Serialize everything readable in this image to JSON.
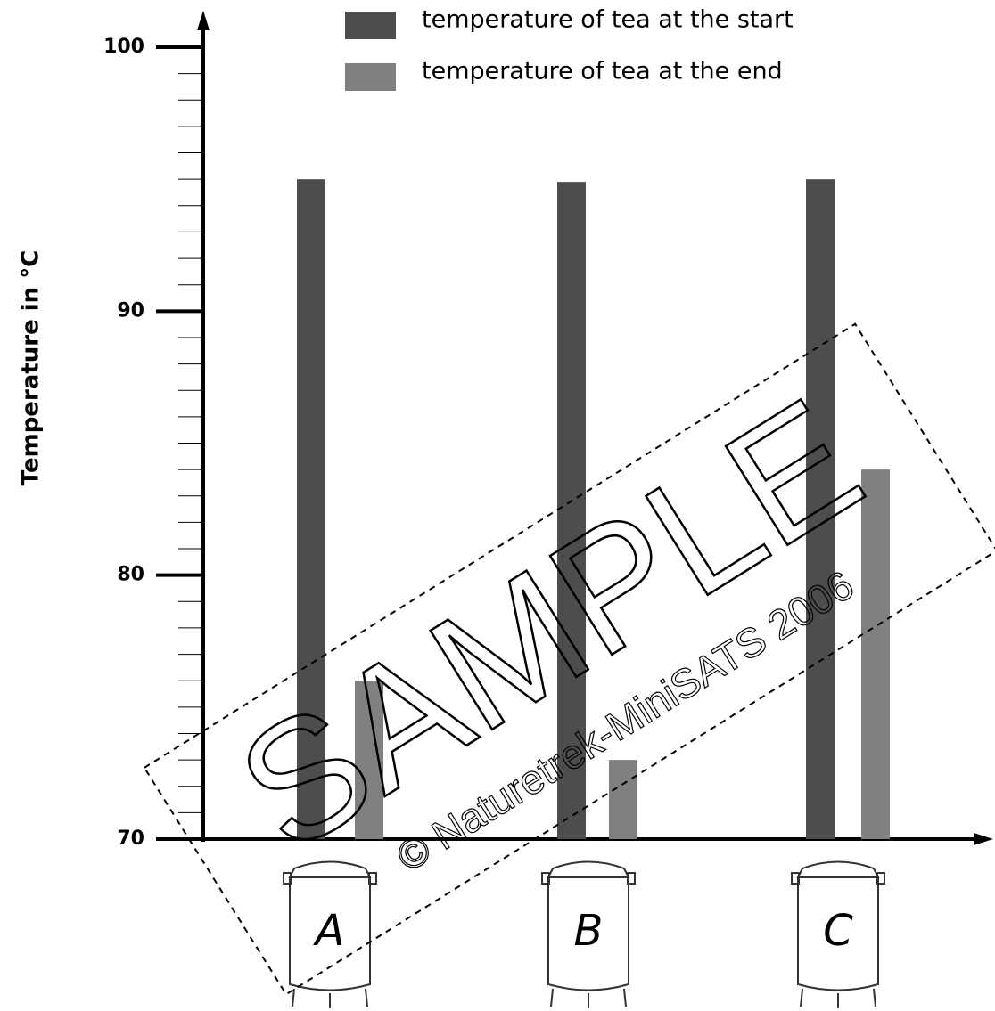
{
  "chart_data": {
    "type": "bar",
    "y_label": "Temperature in °C",
    "categories": [
      "A",
      "B",
      "C"
    ],
    "series": [
      {
        "name": "temperature of tea at the start",
        "color": "#4d4d4d",
        "values": [
          95,
          94.9,
          95
        ]
      },
      {
        "name": "temperature of tea at the end",
        "color": "#808080",
        "values": [
          76,
          73,
          84
        ]
      }
    ],
    "ylim": [
      70,
      100
    ],
    "yticks": [
      70,
      80,
      90,
      100
    ],
    "yminorticks": [
      71,
      72,
      73,
      74,
      75,
      76,
      77,
      78,
      79,
      81,
      82,
      83,
      84,
      85,
      86,
      87,
      88,
      89,
      91,
      92,
      93,
      94,
      95,
      96,
      97,
      98,
      99
    ],
    "watermark": {
      "text": "SAMPLE",
      "credit": "© Naturetrek-MiniSATS 2006"
    }
  }
}
